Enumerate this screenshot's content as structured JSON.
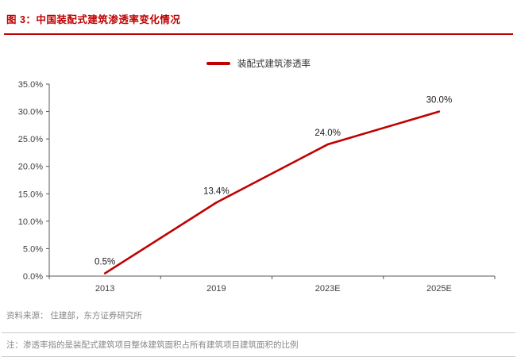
{
  "header": {
    "title": "图 3：中国装配式建筑渗透率变化情况"
  },
  "legend": {
    "label": "装配式建筑渗透率"
  },
  "footer": {
    "source": "资料来源： 住建部，东方证券研究所",
    "note": "注：渗透率指的是装配式建筑项目整体建筑面积占所有建筑项目建筑面积的比例"
  },
  "colors": {
    "accent": "#C00000",
    "line": "#C00000",
    "axis": "#595959",
    "muted_text": "#898989"
  },
  "chart_data": {
    "type": "line",
    "title": "中国装配式建筑渗透率变化情况",
    "categories": [
      "2013",
      "2019",
      "2023E",
      "2025E"
    ],
    "series": [
      {
        "name": "装配式建筑渗透率",
        "values": [
          0.5,
          13.4,
          24.0,
          30.0
        ]
      }
    ],
    "data_labels": [
      "0.5%",
      "13.4%",
      "24.0%",
      "30.0%"
    ],
    "xlabel": "",
    "ylabel": "",
    "ylim": [
      0,
      35
    ],
    "ytick_step": 5,
    "ytick_labels": [
      "0.0%",
      "5.0%",
      "10.0%",
      "15.0%",
      "20.0%",
      "25.0%",
      "30.0%",
      "35.0%"
    ],
    "grid": false,
    "legend_position": "top-center"
  }
}
